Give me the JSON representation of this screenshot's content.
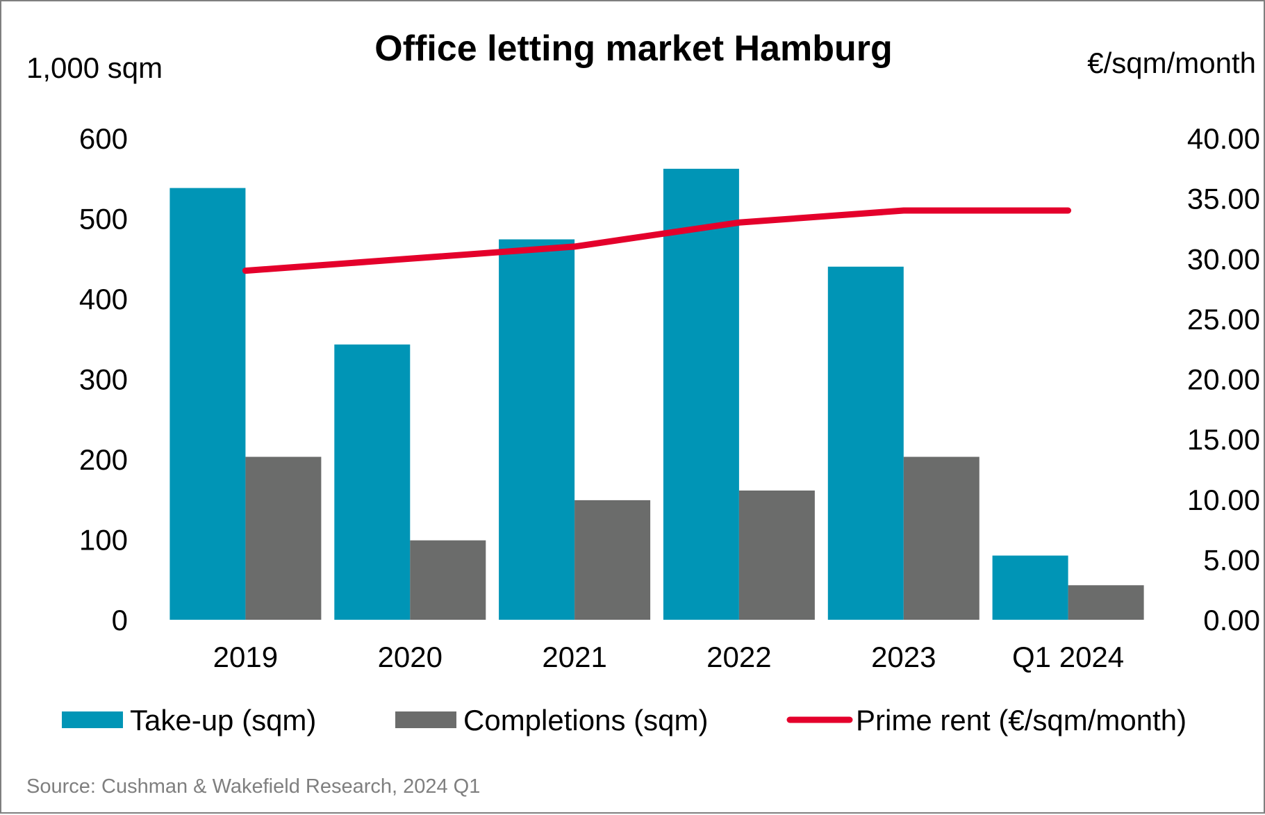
{
  "chart_data": {
    "type": "bar",
    "title": "Office letting market Hamburg",
    "y_left_label": "1,000 sqm",
    "y_right_label": "€/sqm/month",
    "categories": [
      "2019",
      "2020",
      "2021",
      "2022",
      "2023",
      "Q1 2024"
    ],
    "series": [
      {
        "name": "Take-up (sqm)",
        "type": "bar",
        "axis": "left",
        "color": "#0095b6",
        "values": [
          538,
          343,
          474,
          562,
          440,
          80
        ]
      },
      {
        "name": "Completions (sqm)",
        "type": "bar",
        "axis": "left",
        "color": "#6b6c6b",
        "values": [
          203,
          99,
          149,
          161,
          203,
          43
        ]
      },
      {
        "name": "Prime rent (€/sqm/month)",
        "type": "line",
        "axis": "right",
        "color": "#e4002b",
        "values": [
          29.0,
          30.0,
          31.0,
          33.0,
          34.0,
          34.0
        ]
      }
    ],
    "ylim_left": [
      0,
      600
    ],
    "yticks_left": [
      "0",
      "100",
      "200",
      "300",
      "400",
      "500",
      "600"
    ],
    "ylim_right": [
      0,
      40
    ],
    "yticks_right": [
      "0.00",
      "5.00",
      "10.00",
      "15.00",
      "20.00",
      "25.00",
      "30.00",
      "35.00",
      "40.00"
    ],
    "grid": false,
    "legend": "bottom",
    "source": "Source: Cushman & Wakefield Research, 2024 Q1"
  }
}
